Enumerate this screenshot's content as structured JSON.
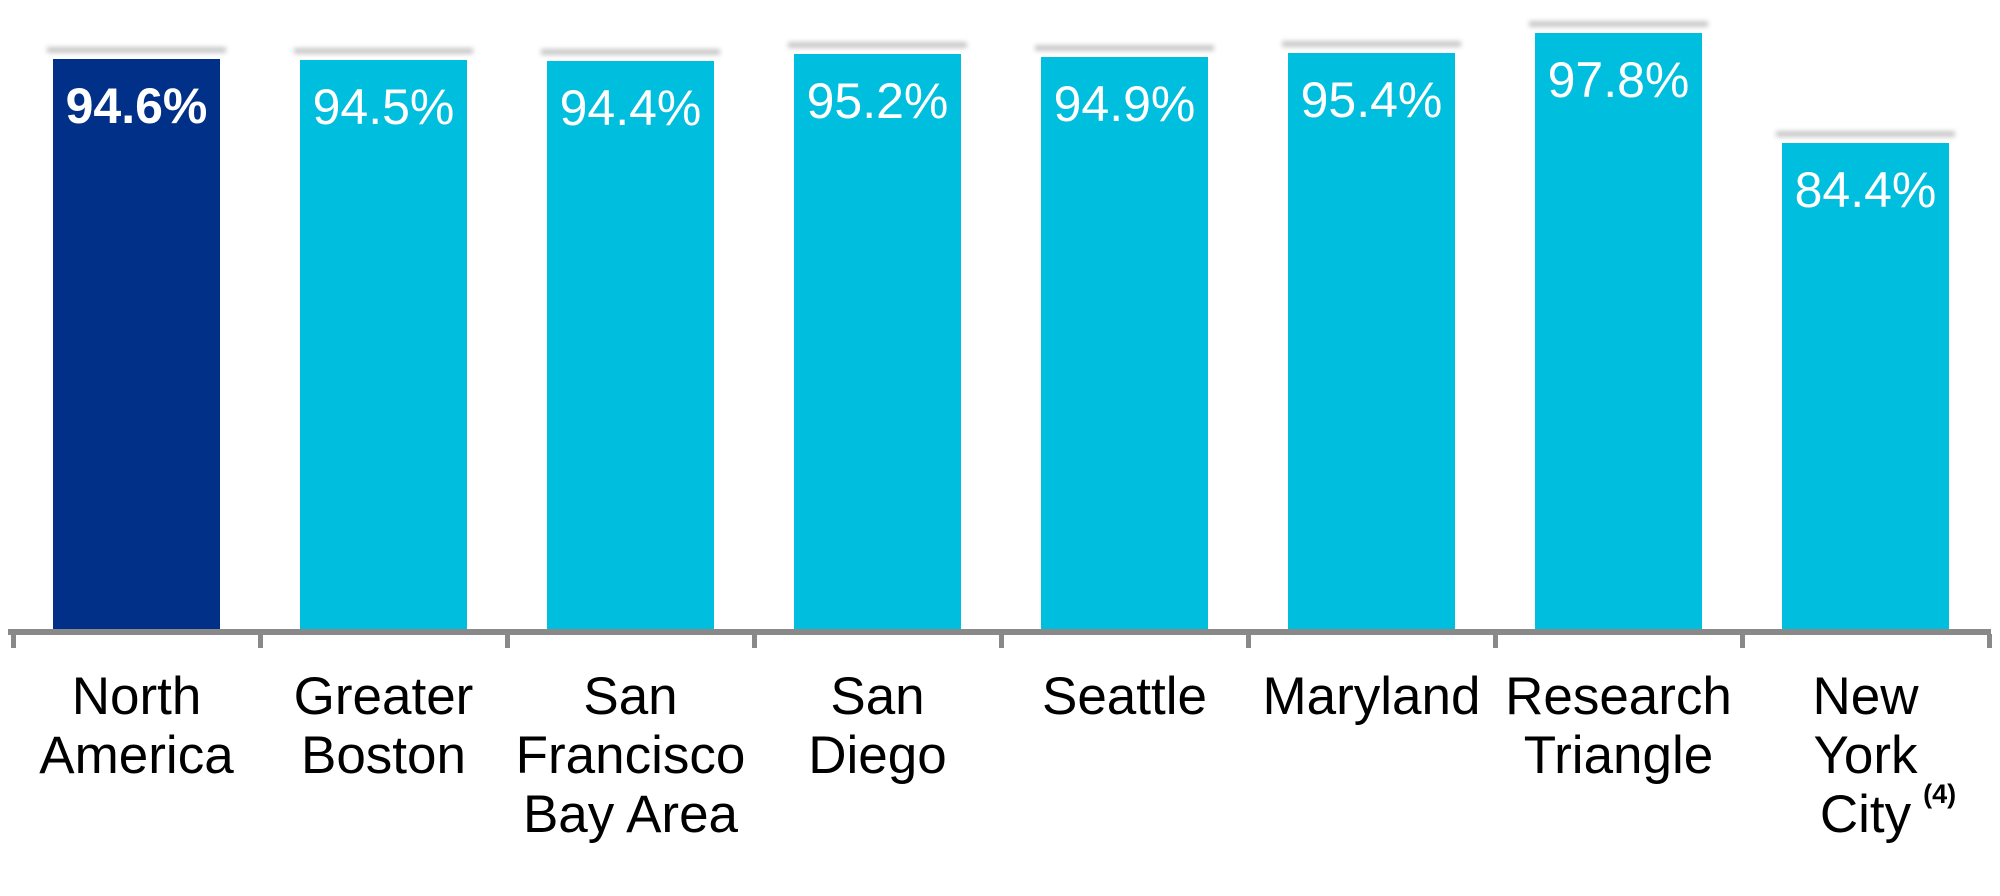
{
  "chart_data": {
    "type": "bar",
    "title": "",
    "xlabel": "",
    "ylabel": "",
    "value_format": "percent",
    "categories": [
      "North America",
      "Greater Boston",
      "San Francisco Bay Area",
      "San Diego",
      "Seattle",
      "Maryland",
      "Research Triangle",
      "New York City (4)"
    ],
    "values": [
      94.6,
      94.5,
      94.4,
      95.2,
      94.9,
      95.4,
      97.8,
      84.4
    ],
    "points": [
      {
        "key": "north-america",
        "label_lines": [
          "North",
          "America"
        ],
        "value": 94.6,
        "display": "94.6%",
        "highlight": true
      },
      {
        "key": "greater-boston",
        "label_lines": [
          "Greater",
          "Boston"
        ],
        "value": 94.5,
        "display": "94.5%",
        "highlight": false
      },
      {
        "key": "san-francisco-bay-area",
        "label_lines": [
          "San",
          "Francisco",
          "Bay Area"
        ],
        "value": 94.4,
        "display": "94.4%",
        "highlight": false
      },
      {
        "key": "san-diego",
        "label_lines": [
          "San",
          "Diego"
        ],
        "value": 95.2,
        "display": "95.2%",
        "highlight": false
      },
      {
        "key": "seattle",
        "label_lines": [
          "Seattle"
        ],
        "value": 94.9,
        "display": "94.9%",
        "highlight": false
      },
      {
        "key": "maryland",
        "label_lines": [
          "Maryland"
        ],
        "value": 95.4,
        "display": "95.4%",
        "highlight": false
      },
      {
        "key": "research-triangle",
        "label_lines": [
          "Research",
          "Triangle"
        ],
        "value": 97.8,
        "display": "97.8%",
        "highlight": false
      },
      {
        "key": "new-york-city",
        "label_lines": [
          "New",
          "York",
          "City"
        ],
        "footnote": "(4)",
        "value": 84.4,
        "display": "84.4%",
        "highlight": false
      }
    ],
    "axis": {
      "baseline_visible": true,
      "y_axis_visible": false,
      "gridlines": false,
      "tick_marks": "category-boundaries",
      "data_labels": "inside-top"
    },
    "legend": {
      "visible": false
    }
  },
  "colors": {
    "bar_default": "#00BEDE",
    "bar_highlight": "#003087",
    "axis": "#898989",
    "category_text": "#000000",
    "value_text": "#FFFFFF",
    "background": "#FFFFFF"
  }
}
